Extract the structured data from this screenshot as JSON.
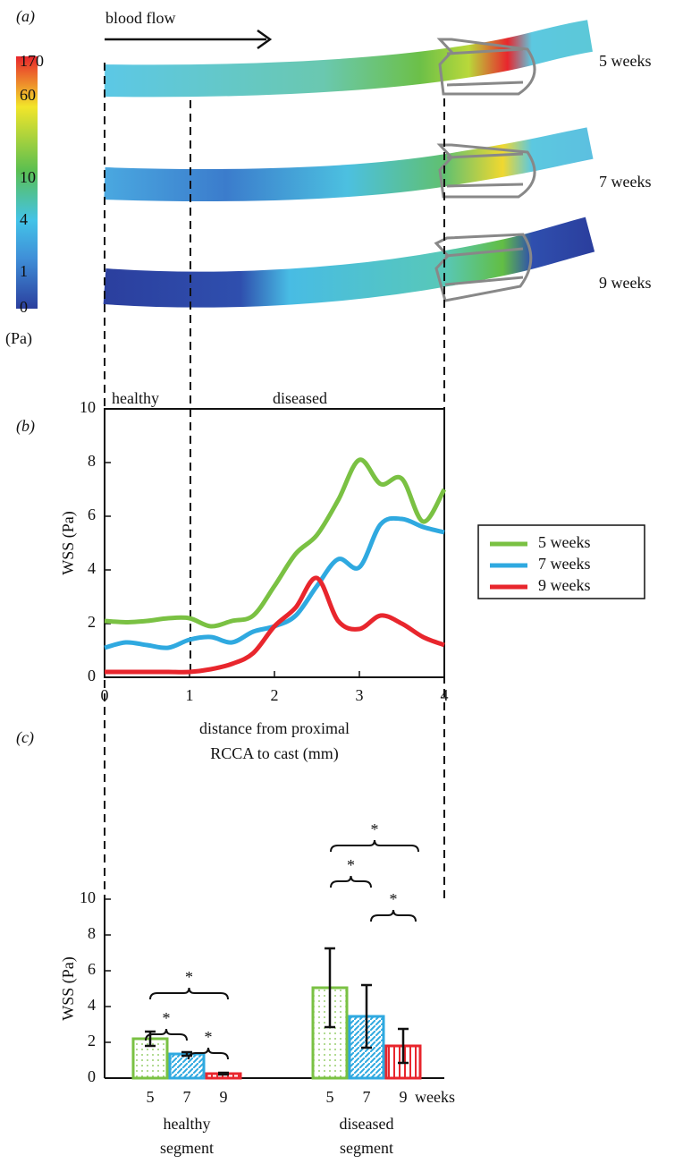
{
  "chart_data": [
    {
      "type": "vessel-map",
      "panel": "(a)",
      "annotation": "blood flow",
      "colorbar_ticks": [
        170,
        60,
        10,
        4,
        1,
        0
      ],
      "colorbar_unit": "(Pa)",
      "rows": [
        "5 weeks",
        "7 weeks",
        "9 weeks"
      ],
      "regions": [
        "healthy",
        "diseased"
      ]
    },
    {
      "type": "line",
      "panel": "(b)",
      "ylabel": "WSS (Pa)",
      "xlabel": [
        "distance from proximal",
        "RCCA to cast (mm)"
      ],
      "x": [
        0,
        0.25,
        0.5,
        0.75,
        1,
        1.25,
        1.5,
        1.75,
        2,
        2.25,
        2.5,
        2.75,
        3,
        3.25,
        3.5,
        3.75,
        4
      ],
      "series": [
        {
          "name": "5 weeks",
          "color": "#7ac143",
          "values": [
            2.1,
            2.05,
            2.1,
            2.2,
            2.2,
            1.9,
            2.1,
            2.3,
            3.4,
            4.6,
            5.3,
            6.6,
            8.1,
            7.2,
            7.4,
            5.8,
            7.0
          ]
        },
        {
          "name": "7 weeks",
          "color": "#2fa9e0",
          "values": [
            1.1,
            1.3,
            1.2,
            1.1,
            1.4,
            1.5,
            1.3,
            1.7,
            1.9,
            2.3,
            3.4,
            4.4,
            4.1,
            5.7,
            5.9,
            5.6,
            5.4
          ]
        },
        {
          "name": "9 weeks",
          "color": "#e8262d",
          "values": [
            0.2,
            0.2,
            0.2,
            0.2,
            0.2,
            0.3,
            0.5,
            0.9,
            1.9,
            2.6,
            3.7,
            2.1,
            1.8,
            2.3,
            2.0,
            1.5,
            1.2
          ]
        }
      ],
      "xlim": [
        0,
        4
      ],
      "ylim": [
        0,
        10
      ],
      "xticks": [
        0,
        1,
        2,
        3,
        4
      ],
      "yticks": [
        0,
        2,
        4,
        6,
        8,
        10
      ],
      "legend": "right"
    },
    {
      "type": "bar",
      "panel": "(c)",
      "ylabel": "WSS (Pa)",
      "categories": [
        [
          "healthy",
          "segment"
        ],
        [
          "diseased",
          "segment"
        ]
      ],
      "series": [
        {
          "name": "5",
          "color": "#7ac143",
          "values": [
            2.2,
            5.05
          ],
          "errors": [
            0.4,
            2.2
          ]
        },
        {
          "name": "7",
          "color": "#2fa9e0",
          "values": [
            1.35,
            3.45
          ],
          "errors": [
            0.1,
            1.75
          ]
        },
        {
          "name": "9",
          "color": "#e8262d",
          "values": [
            0.25,
            1.8
          ],
          "errors": [
            0.05,
            0.95
          ]
        }
      ],
      "tick_unit": "weeks",
      "significance": [
        "*",
        "*",
        "*",
        "*",
        "*",
        "*"
      ],
      "ylim": [
        0,
        10
      ],
      "yticks": [
        0,
        2,
        4,
        6,
        8,
        10
      ]
    }
  ]
}
